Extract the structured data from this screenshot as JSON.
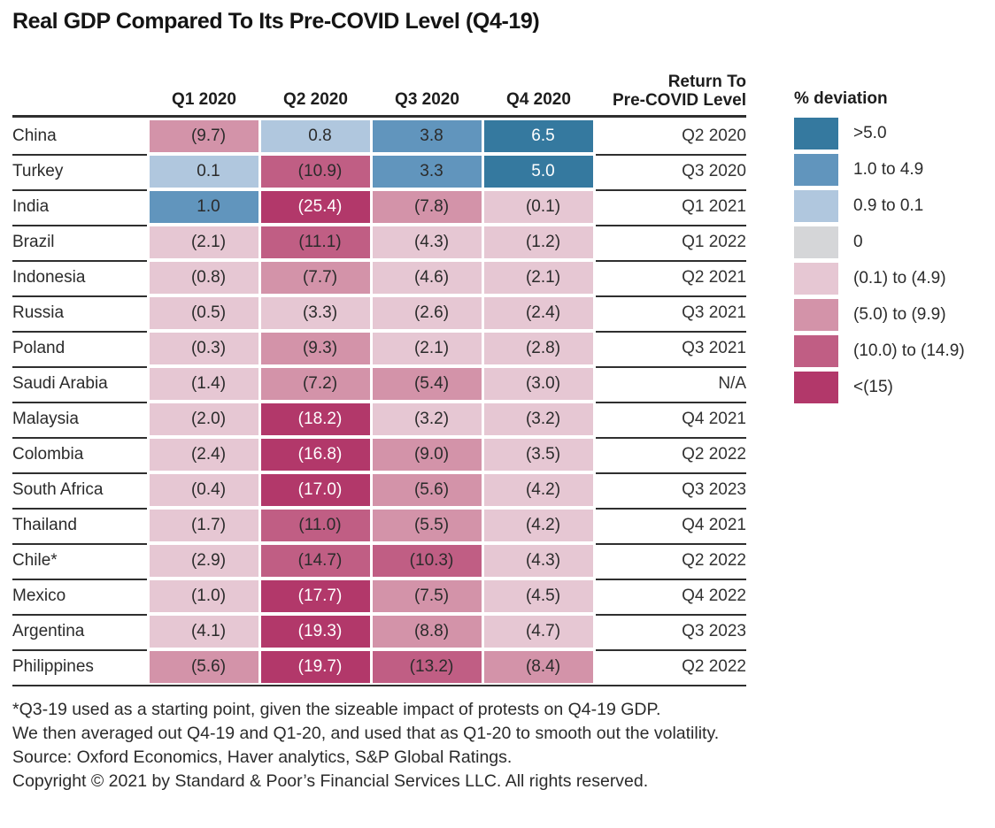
{
  "chart_data": {
    "type": "heatmap",
    "title": "Real GDP Compared To Its Pre-COVID Level (Q4-19)",
    "unit_label": "% deviation",
    "columns": [
      "Q1 2020",
      "Q2 2020",
      "Q3 2020",
      "Q4 2020"
    ],
    "return_column_header": "Return To Pre-COVID Level",
    "rows": [
      {
        "country": "China",
        "values": [
          -9.7,
          0.8,
          3.8,
          6.5
        ],
        "return_to_pre_covid": "Q2 2020"
      },
      {
        "country": "Turkey",
        "values": [
          0.1,
          -10.9,
          3.3,
          5.0
        ],
        "return_to_pre_covid": "Q3 2020"
      },
      {
        "country": "India",
        "values": [
          1.0,
          -25.4,
          -7.8,
          -0.1
        ],
        "return_to_pre_covid": "Q1 2021"
      },
      {
        "country": "Brazil",
        "values": [
          -2.1,
          -11.1,
          -4.3,
          -1.2
        ],
        "return_to_pre_covid": "Q1 2022"
      },
      {
        "country": "Indonesia",
        "values": [
          -0.8,
          -7.7,
          -4.6,
          -2.1
        ],
        "return_to_pre_covid": "Q2 2021"
      },
      {
        "country": "Russia",
        "values": [
          -0.5,
          -3.3,
          -2.6,
          -2.4
        ],
        "return_to_pre_covid": "Q3 2021"
      },
      {
        "country": "Poland",
        "values": [
          -0.3,
          -9.3,
          -2.1,
          -2.8
        ],
        "return_to_pre_covid": "Q3 2021"
      },
      {
        "country": "Saudi Arabia",
        "values": [
          -1.4,
          -7.2,
          -5.4,
          -3.0
        ],
        "return_to_pre_covid": "N/A"
      },
      {
        "country": "Malaysia",
        "values": [
          -2.0,
          -18.2,
          -3.2,
          -3.2
        ],
        "return_to_pre_covid": "Q4 2021"
      },
      {
        "country": "Colombia",
        "values": [
          -2.4,
          -16.8,
          -9.0,
          -3.5
        ],
        "return_to_pre_covid": "Q2 2022"
      },
      {
        "country": "South Africa",
        "values": [
          -0.4,
          -17.0,
          -5.6,
          -4.2
        ],
        "return_to_pre_covid": "Q3 2023"
      },
      {
        "country": "Thailand",
        "values": [
          -1.7,
          -11.0,
          -5.5,
          -4.2
        ],
        "return_to_pre_covid": "Q4 2021"
      },
      {
        "country": "Chile*",
        "values": [
          -2.9,
          -14.7,
          -10.3,
          -4.3
        ],
        "return_to_pre_covid": "Q2 2022"
      },
      {
        "country": "Mexico",
        "values": [
          -1.0,
          -17.7,
          -7.5,
          -4.5
        ],
        "return_to_pre_covid": "Q4 2022"
      },
      {
        "country": "Argentina",
        "values": [
          -4.1,
          -19.3,
          -8.8,
          -4.7
        ],
        "return_to_pre_covid": "Q3 2023"
      },
      {
        "country": "Philippines",
        "values": [
          -5.6,
          -19.7,
          -13.2,
          -8.4
        ],
        "return_to_pre_covid": "Q2 2022"
      }
    ]
  },
  "header": {
    "return_line1": "Return To",
    "return_line2": "Pre-COVID Level"
  },
  "legend": {
    "title": "% deviation",
    "items": [
      {
        "label": ">5.0",
        "band": "pos5"
      },
      {
        "label": "1.0 to 4.9",
        "band": "pos1"
      },
      {
        "label": "0.9 to 0.1",
        "band": "pos01"
      },
      {
        "label": "0",
        "band": "zero"
      },
      {
        "label": "(0.1) to (4.9)",
        "band": "neg01"
      },
      {
        "label": "(5.0) to (9.9)",
        "band": "neg5"
      },
      {
        "label": "(10.0) to (14.9)",
        "band": "neg10"
      },
      {
        "label": "<(15)",
        "band": "neg15"
      }
    ]
  },
  "footnotes": [
    "*Q3-19 used as a starting point, given the sizeable impact of protests on Q4-19 GDP.",
    "We then averaged out Q4-19 and Q1-20, and used that as Q1-20 to smooth out the volatility.",
    "Source: Oxford Economics, Haver analytics, S&P Global Ratings.",
    "Copyright © 2021 by Standard & Poor’s Financial Services LLC. All rights reserved."
  ],
  "colors": {
    "line": "#2f2f2f",
    "text": "#2b2b2b",
    "bands": {
      "pos5": {
        "bg": "#35799f",
        "fg": "#ffffff"
      },
      "pos1": {
        "bg": "#6195bd",
        "fg": "#2b2b2b"
      },
      "pos01": {
        "bg": "#b0c7de",
        "fg": "#2b2b2b"
      },
      "zero": {
        "bg": "#d5d6d8",
        "fg": "#2b2b2b"
      },
      "neg01": {
        "bg": "#e6c7d3",
        "fg": "#2b2b2b"
      },
      "neg5": {
        "bg": "#d393a9",
        "fg": "#2b2b2b"
      },
      "neg10": {
        "bg": "#c05e84",
        "fg": "#2b2b2b"
      },
      "neg15": {
        "bg": "#b2386a",
        "fg": "#ffffff"
      }
    }
  }
}
